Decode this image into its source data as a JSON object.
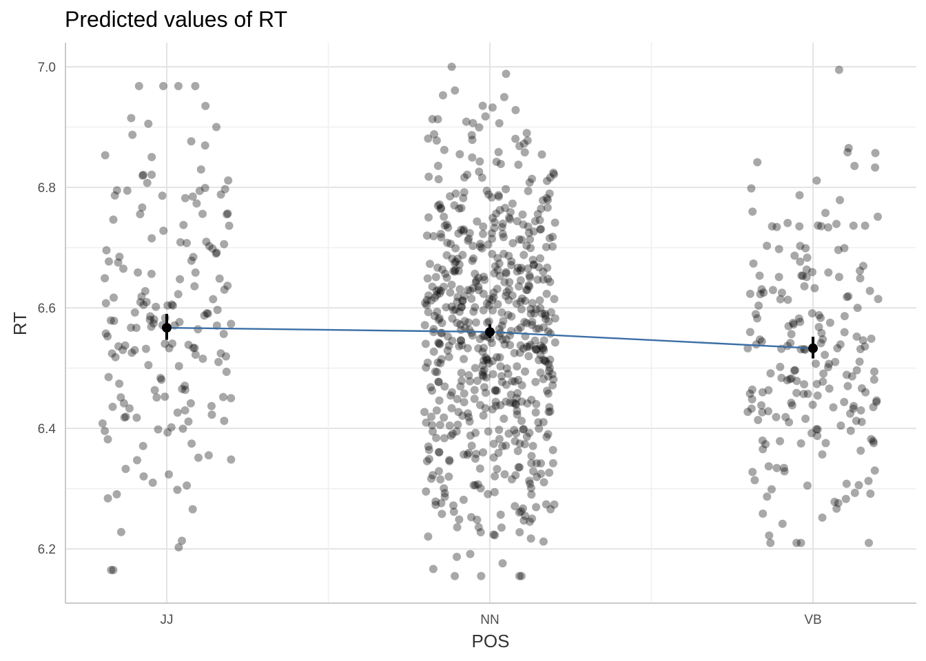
{
  "chart_data": {
    "type": "scatter",
    "title": "Predicted values of RT",
    "xlabel": "POS",
    "ylabel": "RT",
    "categories": [
      "JJ",
      "NN",
      "VB"
    ],
    "ylim": [
      6.11,
      7.04
    ],
    "yticks": [
      6.2,
      6.4,
      6.6,
      6.8,
      7.0
    ],
    "ytick_labels": [
      "6.2",
      "6.4",
      "6.6",
      "6.8",
      "7.0"
    ],
    "grid": true,
    "predicted": [
      {
        "category": "JJ",
        "value": 6.567,
        "ci": [
          6.547,
          6.59
        ]
      },
      {
        "category": "NN",
        "value": 6.56,
        "ci": [
          6.55,
          6.573
        ]
      },
      {
        "category": "VB",
        "value": 6.533,
        "ci": [
          6.516,
          6.552
        ]
      }
    ],
    "raw": [
      {
        "category": "JJ",
        "count": 176,
        "min": 6.165,
        "max": 6.968,
        "center": 6.56,
        "spread": 0.18,
        "seed": 11
      },
      {
        "category": "NN",
        "count": 615,
        "min": 6.155,
        "max": 7.0,
        "center": 6.56,
        "spread": 0.17,
        "seed": 29
      },
      {
        "category": "VB",
        "count": 203,
        "min": 6.21,
        "max": 6.995,
        "center": 6.53,
        "spread": 0.16,
        "seed": 47
      }
    ],
    "colors": {
      "points": "#000000",
      "line": "#3a6ea5",
      "grid": "#e3e3e3",
      "axis": "#c9c9c9"
    }
  }
}
